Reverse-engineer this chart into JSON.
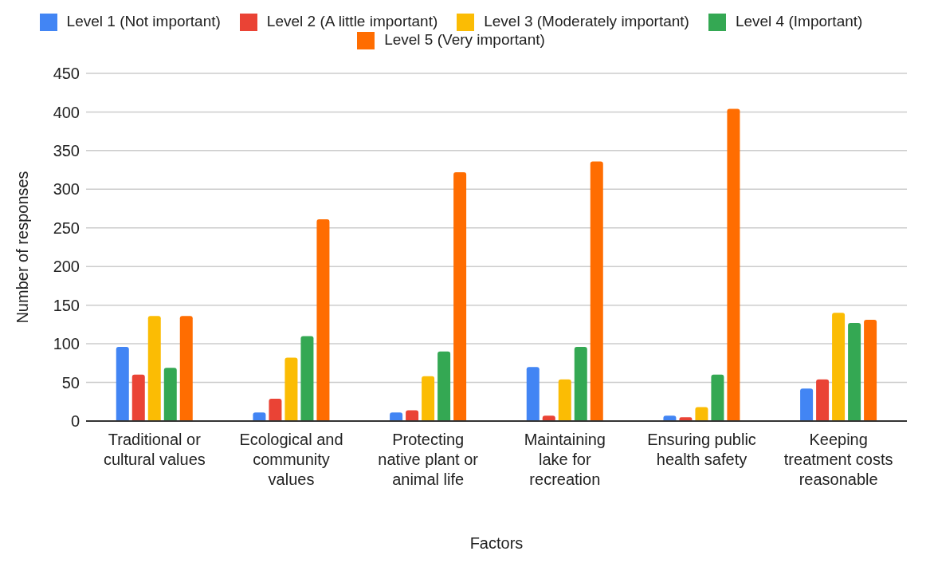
{
  "chart_data": {
    "type": "bar",
    "xlabel": "Factors",
    "ylabel": "Number of responses",
    "categories": [
      "Traditional or cultural values",
      "Ecological and community values",
      "Protecting native plant or animal life",
      "Maintaining lake for recreation",
      "Ensuring public health safety",
      "Keeping treatment costs reasonable"
    ],
    "series": [
      {
        "name": "Level 1 (Not important)",
        "color": "#4285f4",
        "values": [
          96,
          11,
          11,
          70,
          7,
          42
        ]
      },
      {
        "name": "Level 2 (A little important)",
        "color": "#ea4335",
        "values": [
          60,
          29,
          14,
          7,
          5,
          54
        ]
      },
      {
        "name": "Level 3 (Moderately important)",
        "color": "#fbbc04",
        "values": [
          136,
          82,
          58,
          54,
          18,
          140
        ]
      },
      {
        "name": "Level 4 (Important)",
        "color": "#34a853",
        "values": [
          69,
          110,
          90,
          96,
          60,
          127
        ]
      },
      {
        "name": "Level 5 (Very important)",
        "color": "#ff6d01",
        "values": [
          136,
          261,
          322,
          336,
          404,
          131
        ]
      }
    ],
    "ylim": [
      0,
      450
    ],
    "yticks": [
      0,
      50,
      100,
      150,
      200,
      250,
      300,
      350,
      400,
      450
    ],
    "grid": "y",
    "legend": "top"
  }
}
